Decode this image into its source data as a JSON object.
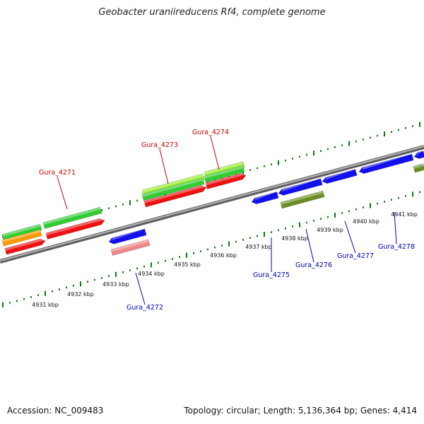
{
  "title": "Geobacter uraniireducens Rf4, complete genome",
  "footer": {
    "accession": "Accession: NC_009483",
    "summary": "Topology: circular; Length: 5,136,364 bp; Genes: 4,414"
  },
  "colors": {
    "forward_label": "#cc0000",
    "reverse_label": "#0000bb",
    "backbone": "#8a8a8a",
    "ticks": "#0b7a0b",
    "cds_red": "#ee1111",
    "cds_green": "#33cc33",
    "cds_lightgreen": "#99ee33",
    "cds_orange": "#ff9900",
    "cds_blue": "#1111ee",
    "cds_pink": "#ee8888",
    "cds_olive": "#6b8e23"
  },
  "genes": [
    {
      "name": "Gura_4271",
      "strand": "forward"
    },
    {
      "name": "Gura_4272",
      "strand": "reverse"
    },
    {
      "name": "Gura_4273",
      "strand": "forward"
    },
    {
      "name": "Gura_4274",
      "strand": "forward"
    },
    {
      "name": "Gura_4275",
      "strand": "reverse"
    },
    {
      "name": "Gura_4276",
      "strand": "reverse"
    },
    {
      "name": "Gura_4277",
      "strand": "reverse"
    },
    {
      "name": "Gura_4278",
      "strand": "reverse"
    }
  ],
  "kbp_ticks": [
    "4931 kbp",
    "4932 kbp",
    "4933 kbp",
    "4934 kbp",
    "4935 kbp",
    "4936 kbp",
    "4937 kbp",
    "4938 kbp",
    "4939 kbp",
    "4940 kbp",
    "4941 kbp"
  ]
}
